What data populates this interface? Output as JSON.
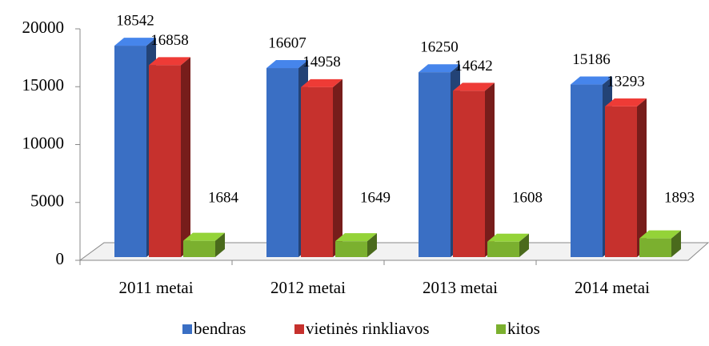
{
  "chart_data": {
    "type": "bar3d",
    "categories": [
      "2011 metai",
      "2012 metai",
      "2013 metai",
      "2014 metai"
    ],
    "series": [
      {
        "name": "bendras",
        "color": "#3a6fc4",
        "values": [
          18542,
          16607,
          16250,
          15186
        ]
      },
      {
        "name": "vietinės rinkliavos",
        "color": "#c6312d",
        "values": [
          16858,
          14958,
          14642,
          13293
        ]
      },
      {
        "name": "kitos",
        "color": "#7bb02f",
        "values": [
          1684,
          1649,
          1608,
          1893
        ]
      }
    ],
    "ylim": [
      0,
      20000
    ],
    "yticks": [
      0,
      5000,
      10000,
      15000,
      20000
    ],
    "legend": "bottom"
  }
}
